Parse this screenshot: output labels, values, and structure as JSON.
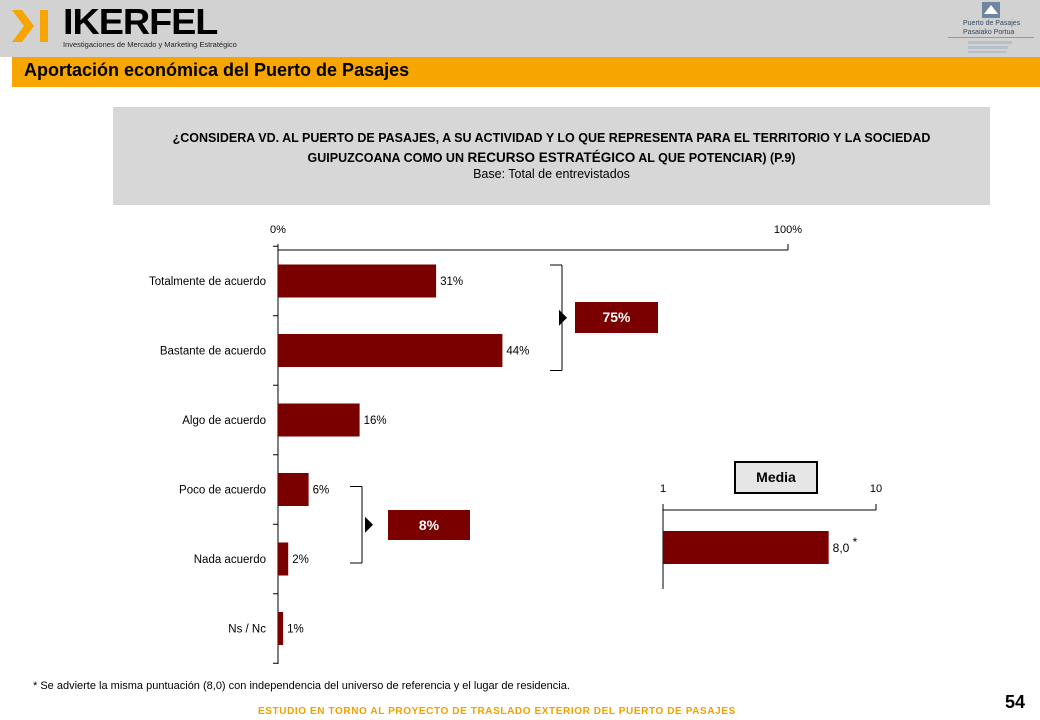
{
  "header": {
    "logo_name": "IKERFEL",
    "logo_tagline": "Investigaciones de Mercado y Marketing Estratégico",
    "partner_line1": "Puerto de Pasajes",
    "partner_line2": "Pasaiako Portua",
    "logo_icon": "ikerfel-arrow-logo",
    "partner_icon": "port-logo"
  },
  "page_title": "Aportación económica del Puerto de Pasajes",
  "question": {
    "text_before": "¿CONSIDERA VD. AL PUERTO DE PASAJES, A SU ACTIVIDAD Y LO QUE REPRESENTA PARA EL TERRITORIO Y LA SOCIEDAD GUIPUZCOANA COMO UN",
    "highlight": "RECURSO ESTRATÉGICO",
    "text_after": "AL QUE POTENCIAR) (P.9)",
    "base": "Base: Total de entrevistados"
  },
  "colors": {
    "bar": "#7a0000",
    "title_bar": "#f7a500",
    "footer_text": "#f0a000",
    "question_bg": "#d7d7d7"
  },
  "chart_data": [
    {
      "type": "bar",
      "orientation": "horizontal",
      "categories": [
        "Totalmente de acuerdo",
        "Bastante de acuerdo",
        "Algo de acuerdo",
        "Poco de acuerdo",
        "Nada acuerdo",
        "Ns / Nc"
      ],
      "values": [
        31,
        44,
        16,
        6,
        2,
        1
      ],
      "value_labels": [
        "31%",
        "44%",
        "16%",
        "6%",
        "2%",
        "1%"
      ],
      "xlim": [
        0,
        100
      ],
      "tick_labels": [
        "0%",
        "100%"
      ],
      "groups": [
        {
          "label": "75%",
          "categories": [
            "Totalmente de acuerdo",
            "Bastante de acuerdo"
          ]
        },
        {
          "label": "8%",
          "categories": [
            "Poco de acuerdo",
            "Nada acuerdo"
          ]
        }
      ]
    },
    {
      "type": "bar",
      "orientation": "horizontal",
      "title": "Media",
      "categories": [
        ""
      ],
      "values": [
        8.0
      ],
      "value_labels": [
        "8,0"
      ],
      "marker": "*",
      "xlim": [
        1,
        10
      ],
      "tick_labels": [
        "1",
        "10"
      ]
    }
  ],
  "footnote": "* Se advierte la misma puntuación (8,0)  con independencia del universo   de referencia y el lugar de residencia.",
  "page_number": "54",
  "footer": "ESTUDIO EN TORNO AL PROYECTO DE TRASLADO EXTERIOR DEL PUERTO DE PASAJES"
}
